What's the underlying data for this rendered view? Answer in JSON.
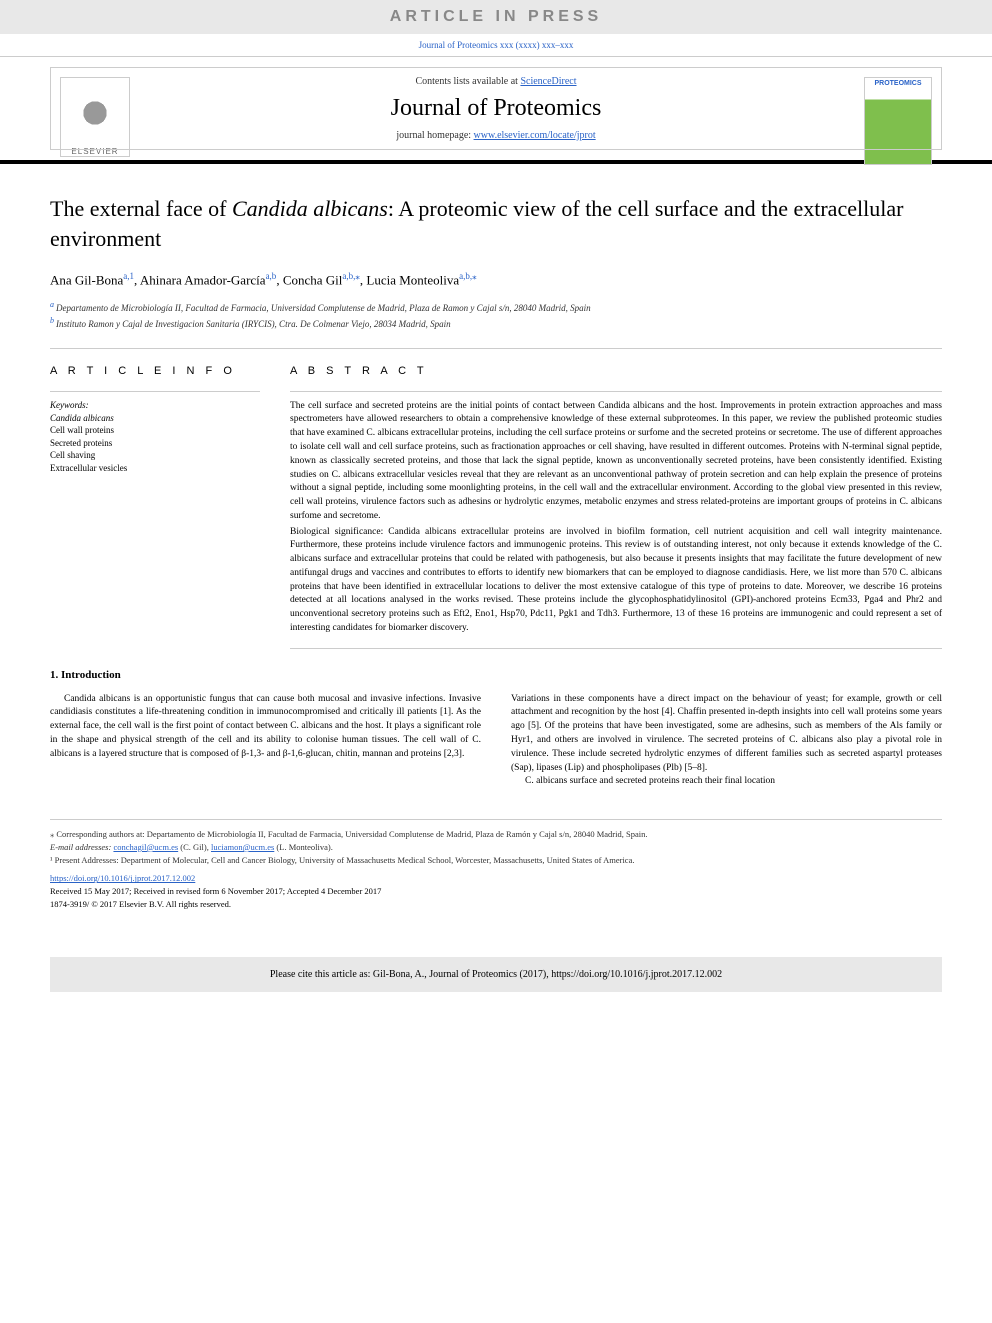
{
  "article_in_press": "ARTICLE IN PRESS",
  "journal_info_line": "Journal of Proteomics xxx (xxxx) xxx–xxx",
  "header": {
    "contents_lists_pre": "Contents lists available at ",
    "contents_lists_link": "ScienceDirect",
    "journal_name": "Journal of Proteomics",
    "homepage_pre": "journal homepage: ",
    "homepage_link": "www.elsevier.com/locate/jprot",
    "elsevier_text": "ELSEVIER",
    "cover_title": "PROTEOMICS"
  },
  "title_pre": "The external face of ",
  "title_em": "Candida albicans",
  "title_post": ": A proteomic view of the cell surface and the extracellular environment",
  "authors": [
    {
      "name": "Ana Gil-Bona",
      "sup": "a,1"
    },
    {
      "name": "Ahinara Amador-García",
      "sup": "a,b"
    },
    {
      "name": "Concha Gil",
      "sup": "a,b,⁎"
    },
    {
      "name": "Lucia Monteoliva",
      "sup": "a,b,⁎"
    }
  ],
  "affiliations": [
    {
      "sup": "a",
      "text": "Departamento de Microbiología II, Facultad de Farmacia, Universidad Complutense de Madrid, Plaza de Ramon y Cajal s/n, 28040 Madrid, Spain"
    },
    {
      "sup": "b",
      "text": "Instituto Ramon y Cajal de Investigacion Sanitaria (IRYCIS), Ctra. De Colmenar Viejo, 28034 Madrid, Spain"
    }
  ],
  "article_info_heading": "A R T I C L E  I N F O",
  "keywords_label": "Keywords:",
  "keywords": [
    "Candida albicans",
    "Cell wall proteins",
    "Secreted proteins",
    "Cell shaving",
    "Extracellular vesicles"
  ],
  "abstract_heading": "A B S T R A C T",
  "abstract_p1": "The cell surface and secreted proteins are the initial points of contact between Candida albicans and the host. Improvements in protein extraction approaches and mass spectrometers have allowed researchers to obtain a comprehensive knowledge of these external subproteomes. In this paper, we review the published proteomic studies that have examined C. albicans extracellular proteins, including the cell surface proteins or surfome and the secreted proteins or secretome. The use of different approaches to isolate cell wall and cell surface proteins, such as fractionation approaches or cell shaving, have resulted in different outcomes. Proteins with N-terminal signal peptide, known as classically secreted proteins, and those that lack the signal peptide, known as unconventionally secreted proteins, have been consistently identified. Existing studies on C. albicans extracellular vesicles reveal that they are relevant as an unconventional pathway of protein secretion and can help explain the presence of proteins without a signal peptide, including some moonlighting proteins, in the cell wall and the extracellular environment. According to the global view presented in this review, cell wall proteins, virulence factors such as adhesins or hydrolytic enzymes, metabolic enzymes and stress related-proteins are important groups of proteins in C. albicans surfome and secretome.",
  "abstract_p2": "Biological significance: Candida albicans extracellular proteins are involved in biofilm formation, cell nutrient acquisition and cell wall integrity maintenance. Furthermore, these proteins include virulence factors and immunogenic proteins. This review is of outstanding interest, not only because it extends knowledge of the C. albicans surface and extracellular proteins that could be related with pathogenesis, but also because it presents insights that may facilitate the future development of new antifungal drugs and vaccines and contributes to efforts to identify new biomarkers that can be employed to diagnose candidiasis. Here, we list more than 570 C. albicans proteins that have been identified in extracellular locations to deliver the most extensive catalogue of this type of proteins to date. Moreover, we describe 16 proteins detected at all locations analysed in the works revised. These proteins include the glycophosphatidylinositol (GPI)-anchored proteins Ecm33, Pga4 and Phr2 and unconventional secretory proteins such as Eft2, Eno1, Hsp70, Pdc11, Pgk1 and Tdh3. Furthermore, 13 of these 16 proteins are immunogenic and could represent a set of interesting candidates for biomarker discovery.",
  "intro_heading": "1. Introduction",
  "intro_col1": "Candida albicans is an opportunistic fungus that can cause both mucosal and invasive infections. Invasive candidiasis constitutes a life-threatening condition in immunocompromised and critically ill patients [1]. As the external face, the cell wall is the first point of contact between C. albicans and the host. It plays a significant role in the shape and physical strength of the cell and its ability to colonise human tissues. The cell wall of C. albicans is a layered structure that is composed of β-1,3- and β-1,6-glucan, chitin, mannan and proteins [2,3].",
  "intro_col2_p1": "Variations in these components have a direct impact on the behaviour of yeast; for example, growth or cell attachment and recognition by the host [4]. Chaffin presented in-depth insights into cell wall proteins some years ago [5]. Of the proteins that have been investigated, some are adhesins, such as members of the Als family or Hyr1, and others are involved in virulence. The secreted proteins of C. albicans also play a pivotal role in virulence. These include secreted hydrolytic enzymes of different families such as secreted aspartyl proteases (Sap), lipases (Lip) and phospholipases (Plb) [5–8].",
  "intro_col2_p2": "C. albicans surface and secreted proteins reach their final location",
  "footnote_corr": "⁎ Corresponding authors at: Departamento de Microbiología II, Facultad de Farmacia, Universidad Complutense de Madrid, Plaza de Ramón y Cajal s/n, 28040 Madrid, Spain.",
  "footnote_email_label": "E-mail addresses: ",
  "footnote_email1": "conchagil@ucm.es",
  "footnote_email1_name": " (C. Gil), ",
  "footnote_email2": "luciamon@ucm.es",
  "footnote_email2_name": " (L. Monteoliva).",
  "footnote_addresses": "¹ Present Addresses: Department of Molecular, Cell and Cancer Biology, University of Massachusetts Medical School, Worcester, Massachusetts, United States of America.",
  "doi_link": "https://doi.org/10.1016/j.jprot.2017.12.002",
  "received": "Received 15 May 2017; Received in revised form 6 November 2017; Accepted 4 December 2017",
  "copyright": "1874-3919/ © 2017 Elsevier B.V. All rights reserved.",
  "cite_box": "Please cite this article as: Gil-Bona, A., Journal of Proteomics (2017), https://doi.org/10.1016/j.jprot.2017.12.002"
}
